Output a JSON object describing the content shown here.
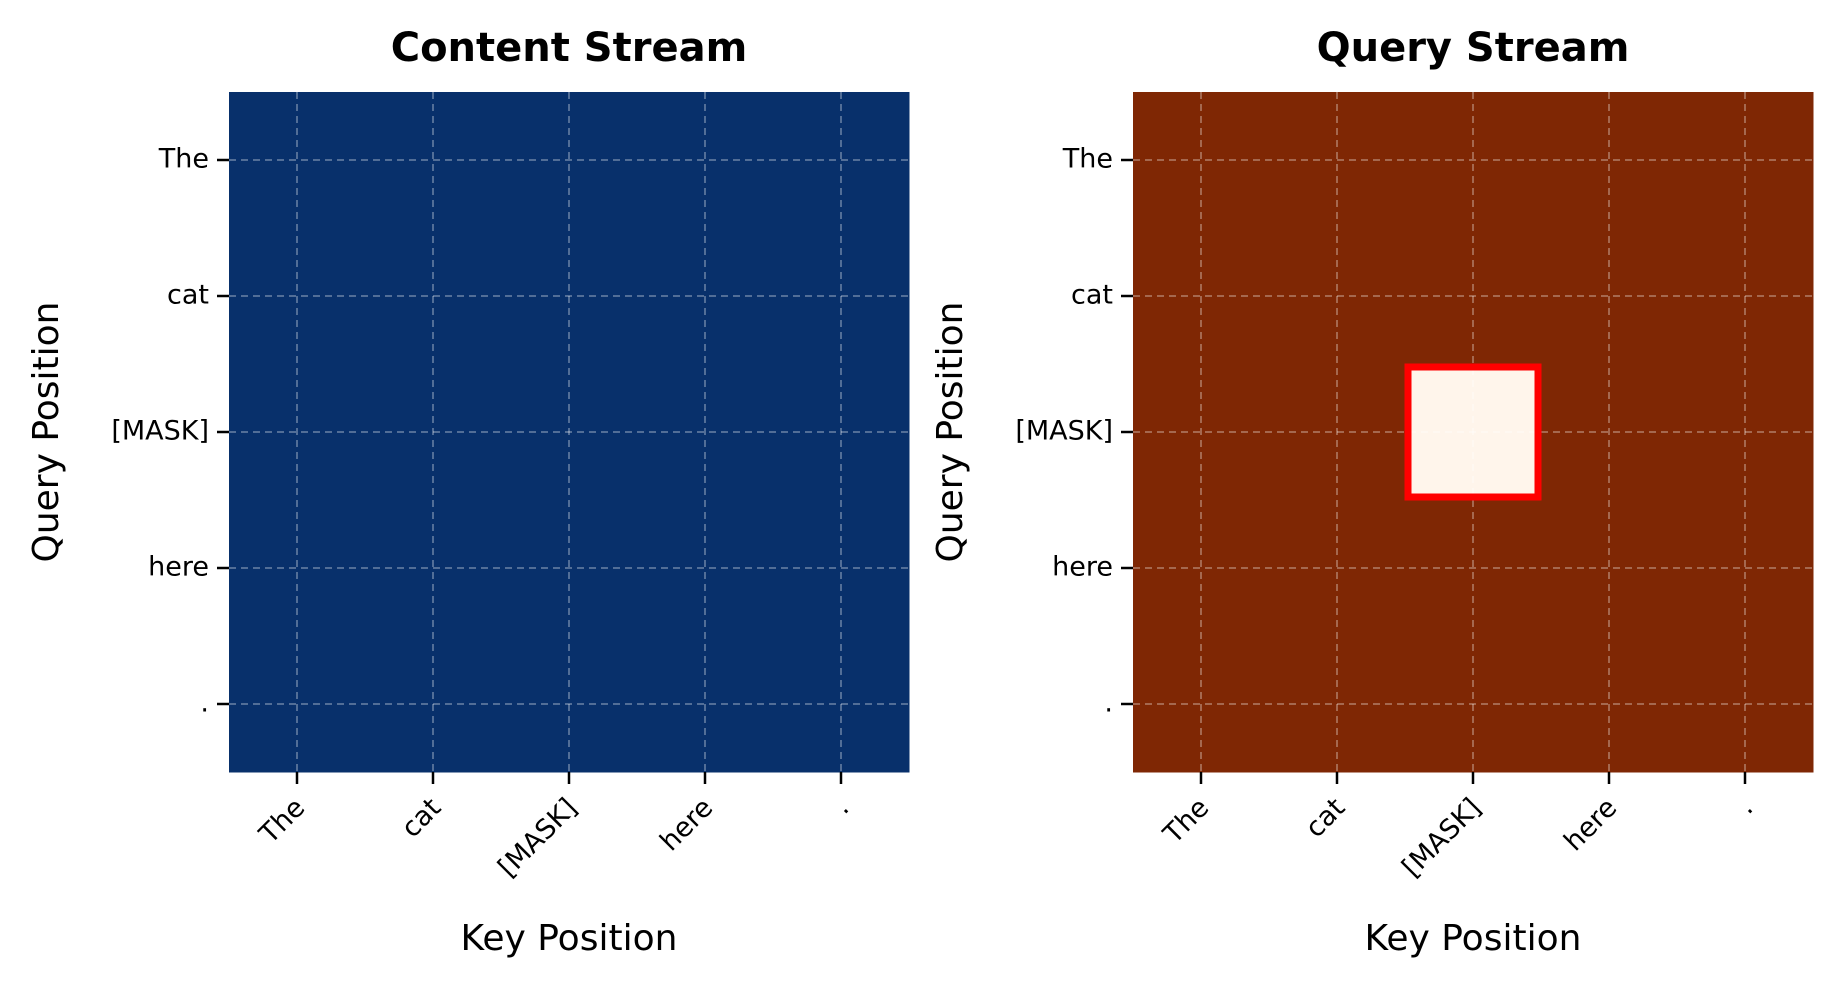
{
  "chart_data": [
    {
      "type": "heatmap",
      "title": "Content Stream",
      "x_label": "Key Position",
      "y_label": "Query Position",
      "x_categories": [
        "The",
        "cat",
        "[MASK]",
        "here",
        "."
      ],
      "y_categories": [
        "The",
        "cat",
        "[MASK]",
        "here",
        "."
      ],
      "values": [
        [
          1,
          1,
          1,
          1,
          1
        ],
        [
          1,
          1,
          1,
          1,
          1
        ],
        [
          1,
          1,
          1,
          1,
          1
        ],
        [
          1,
          1,
          1,
          1,
          1
        ],
        [
          1,
          1,
          1,
          1,
          1
        ]
      ],
      "vlim": [
        0,
        1
      ],
      "colors": [
        "#f7fbff",
        "#08306b"
      ],
      "grid": true
    },
    {
      "type": "heatmap",
      "title": "Query Stream",
      "x_label": "Key Position",
      "y_label": "Query Position",
      "x_categories": [
        "The",
        "cat",
        "[MASK]",
        "here",
        "."
      ],
      "y_categories": [
        "The",
        "cat",
        "[MASK]",
        "here",
        "."
      ],
      "values": [
        [
          1,
          1,
          1,
          1,
          1
        ],
        [
          1,
          1,
          1,
          1,
          1
        ],
        [
          1,
          1,
          0,
          1,
          1
        ],
        [
          1,
          1,
          1,
          1,
          1
        ],
        [
          1,
          1,
          1,
          1,
          1
        ]
      ],
      "vlim": [
        0,
        1
      ],
      "colors": [
        "#fff5eb",
        "#7f2704"
      ],
      "grid": true,
      "highlight": {
        "row": 2,
        "col": 2,
        "color": "#ff0000"
      }
    }
  ]
}
